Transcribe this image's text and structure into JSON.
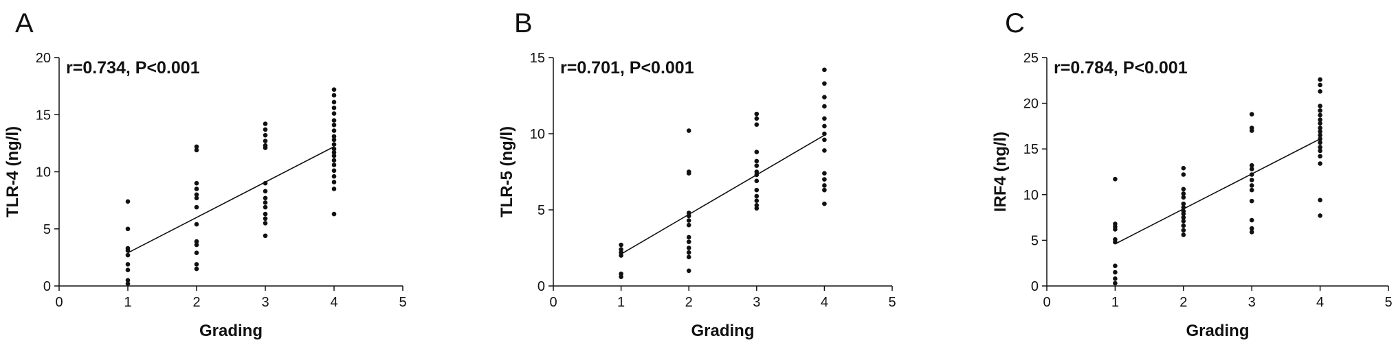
{
  "chart_data": [
    {
      "type": "scatter",
      "panel_label": "A",
      "annotation": "r=0.734,  P<0.001",
      "xlabel": "Grading",
      "ylabel": "TLR-4 (ng/l)",
      "xlim": [
        0,
        5
      ],
      "ylim": [
        0,
        20
      ],
      "xticks": [
        0,
        1,
        2,
        3,
        4,
        5
      ],
      "yticks": [
        0,
        5,
        10,
        15,
        20
      ],
      "fit_line": [
        [
          1,
          2.9
        ],
        [
          4,
          12.2
        ]
      ],
      "points": [
        [
          1,
          7.4
        ],
        [
          1,
          5.0
        ],
        [
          1,
          3.3
        ],
        [
          1,
          3.1
        ],
        [
          1,
          2.7
        ],
        [
          1,
          1.9
        ],
        [
          1,
          1.4
        ],
        [
          1,
          0.5
        ],
        [
          1,
          0.2
        ],
        [
          2,
          12.2
        ],
        [
          2,
          11.9
        ],
        [
          2,
          9.0
        ],
        [
          2,
          8.5
        ],
        [
          2,
          8.0
        ],
        [
          2,
          7.7
        ],
        [
          2,
          6.9
        ],
        [
          2,
          5.4
        ],
        [
          2,
          3.9
        ],
        [
          2,
          3.6
        ],
        [
          2,
          2.9
        ],
        [
          2,
          1.9
        ],
        [
          2,
          1.5
        ],
        [
          3,
          14.2
        ],
        [
          3,
          13.7
        ],
        [
          3,
          13.2
        ],
        [
          3,
          12.7
        ],
        [
          3,
          12.3
        ],
        [
          3,
          12.1
        ],
        [
          3,
          9.0
        ],
        [
          3,
          8.3
        ],
        [
          3,
          7.7
        ],
        [
          3,
          7.3
        ],
        [
          3,
          6.9
        ],
        [
          3,
          6.3
        ],
        [
          3,
          5.9
        ],
        [
          3,
          5.5
        ],
        [
          3,
          4.4
        ],
        [
          4,
          17.2
        ],
        [
          4,
          16.7
        ],
        [
          4,
          16.1
        ],
        [
          4,
          15.6
        ],
        [
          4,
          15.1
        ],
        [
          4,
          14.5
        ],
        [
          4,
          14.1
        ],
        [
          4,
          13.6
        ],
        [
          4,
          13.1
        ],
        [
          4,
          12.8
        ],
        [
          4,
          12.4
        ],
        [
          4,
          12.0
        ],
        [
          4,
          11.7
        ],
        [
          4,
          11.4
        ],
        [
          4,
          11.0
        ],
        [
          4,
          10.6
        ],
        [
          4,
          10.1
        ],
        [
          4,
          9.6
        ],
        [
          4,
          9.1
        ],
        [
          4,
          8.5
        ],
        [
          4,
          6.3
        ]
      ]
    },
    {
      "type": "scatter",
      "panel_label": "B",
      "annotation": "r=0.701,  P<0.001",
      "xlabel": "Grading",
      "ylabel": "TLR-5 (ng/l)",
      "xlim": [
        0,
        5
      ],
      "ylim": [
        0,
        15
      ],
      "xticks": [
        0,
        1,
        2,
        3,
        4,
        5
      ],
      "yticks": [
        0,
        5,
        10,
        15
      ],
      "fit_line": [
        [
          1,
          2.1
        ],
        [
          4,
          9.9
        ]
      ],
      "points": [
        [
          1,
          2.7
        ],
        [
          1,
          2.4
        ],
        [
          1,
          2.2
        ],
        [
          1,
          2.0
        ],
        [
          1,
          0.8
        ],
        [
          1,
          0.6
        ],
        [
          2,
          10.2
        ],
        [
          2,
          7.5
        ],
        [
          2,
          7.4
        ],
        [
          2,
          4.8
        ],
        [
          2,
          4.6
        ],
        [
          2,
          4.3
        ],
        [
          2,
          4.0
        ],
        [
          2,
          3.2
        ],
        [
          2,
          2.9
        ],
        [
          2,
          2.5
        ],
        [
          2,
          2.2
        ],
        [
          2,
          1.9
        ],
        [
          2,
          1.0
        ],
        [
          3,
          11.3
        ],
        [
          3,
          11.0
        ],
        [
          3,
          10.6
        ],
        [
          3,
          8.8
        ],
        [
          3,
          8.2
        ],
        [
          3,
          7.9
        ],
        [
          3,
          7.5
        ],
        [
          3,
          7.3
        ],
        [
          3,
          6.9
        ],
        [
          3,
          6.3
        ],
        [
          3,
          5.9
        ],
        [
          3,
          5.6
        ],
        [
          3,
          5.3
        ],
        [
          3,
          5.1
        ],
        [
          4,
          14.2
        ],
        [
          4,
          13.3
        ],
        [
          4,
          12.4
        ],
        [
          4,
          11.8
        ],
        [
          4,
          11.0
        ],
        [
          4,
          10.5
        ],
        [
          4,
          10.0
        ],
        [
          4,
          9.6
        ],
        [
          4,
          8.9
        ],
        [
          4,
          7.4
        ],
        [
          4,
          7.0
        ],
        [
          4,
          6.6
        ],
        [
          4,
          6.3
        ],
        [
          4,
          5.4
        ]
      ]
    },
    {
      "type": "scatter",
      "panel_label": "C",
      "annotation": "r=0.784,  P<0.001",
      "xlabel": "Grading",
      "ylabel": "IRF4 (ng/l)",
      "xlim": [
        0,
        5
      ],
      "ylim": [
        0,
        25
      ],
      "xticks": [
        0,
        1,
        2,
        3,
        4,
        5
      ],
      "yticks": [
        0,
        5,
        10,
        15,
        20,
        25
      ],
      "fit_line": [
        [
          1,
          4.6
        ],
        [
          4,
          16.1
        ]
      ],
      "points": [
        [
          1,
          11.7
        ],
        [
          1,
          6.8
        ],
        [
          1,
          6.5
        ],
        [
          1,
          6.2
        ],
        [
          1,
          5.1
        ],
        [
          1,
          4.8
        ],
        [
          1,
          2.2
        ],
        [
          1,
          1.5
        ],
        [
          1,
          0.8
        ],
        [
          1,
          0.3
        ],
        [
          2,
          12.9
        ],
        [
          2,
          12.2
        ],
        [
          2,
          10.6
        ],
        [
          2,
          10.1
        ],
        [
          2,
          9.7
        ],
        [
          2,
          9.0
        ],
        [
          2,
          8.6
        ],
        [
          2,
          8.2
        ],
        [
          2,
          7.9
        ],
        [
          2,
          7.5
        ],
        [
          2,
          7.1
        ],
        [
          2,
          6.6
        ],
        [
          2,
          6.1
        ],
        [
          2,
          5.6
        ],
        [
          3,
          18.8
        ],
        [
          3,
          17.3
        ],
        [
          3,
          17.0
        ],
        [
          3,
          13.2
        ],
        [
          3,
          12.8
        ],
        [
          3,
          12.2
        ],
        [
          3,
          11.6
        ],
        [
          3,
          11.0
        ],
        [
          3,
          10.5
        ],
        [
          3,
          9.3
        ],
        [
          3,
          7.2
        ],
        [
          3,
          6.3
        ],
        [
          3,
          5.9
        ],
        [
          4,
          22.6
        ],
        [
          4,
          22.0
        ],
        [
          4,
          21.3
        ],
        [
          4,
          19.7
        ],
        [
          4,
          19.2
        ],
        [
          4,
          18.7
        ],
        [
          4,
          18.2
        ],
        [
          4,
          17.8
        ],
        [
          4,
          17.3
        ],
        [
          4,
          16.9
        ],
        [
          4,
          16.5
        ],
        [
          4,
          16.1
        ],
        [
          4,
          15.7
        ],
        [
          4,
          15.2
        ],
        [
          4,
          14.8
        ],
        [
          4,
          14.2
        ],
        [
          4,
          13.4
        ],
        [
          4,
          9.4
        ],
        [
          4,
          7.7
        ]
      ]
    }
  ]
}
